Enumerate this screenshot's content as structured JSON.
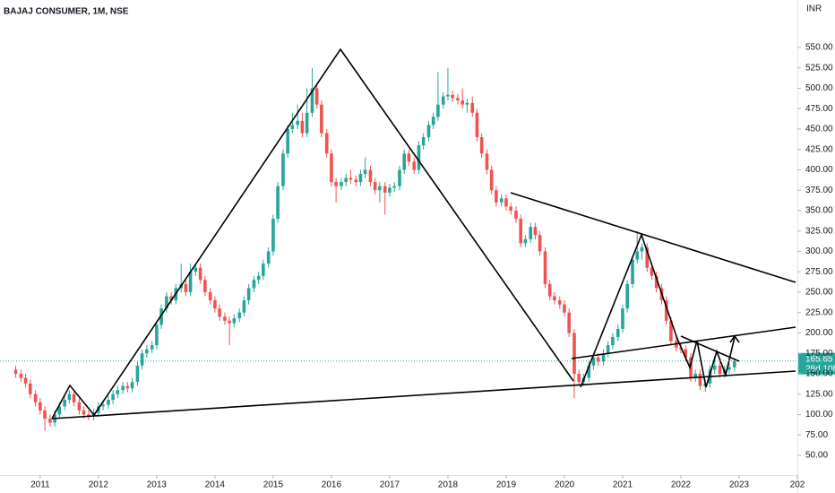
{
  "chart_data": {
    "type": "candlestick",
    "title": "BAJAJ CONSUMER, 1M, NSE",
    "currency": "INR",
    "countdown": "28d 10h",
    "up_color": "#26a69a",
    "down_color": "#ef5350",
    "xlim": [
      2010.31,
      2024.0
    ],
    "xticks": [
      2011,
      2012,
      2013,
      2014,
      2015,
      2016,
      2017,
      2018,
      2019,
      2020,
      2021,
      2022,
      2023,
      {
        "value": 2024,
        "label": "202"
      }
    ],
    "ylim": [
      25.8,
      608.2
    ],
    "yticks": [
      {
        "value": 50,
        "label": "50.00"
      },
      {
        "value": 75,
        "label": "75.00"
      },
      {
        "value": 100,
        "label": "100.00"
      },
      {
        "value": 125,
        "label": "125.00"
      },
      {
        "value": 150,
        "label": "150.00"
      },
      {
        "value": 175,
        "label": "175.00"
      },
      {
        "value": 200,
        "label": "200.00"
      },
      {
        "value": 225,
        "label": "225.00"
      },
      {
        "value": 250,
        "label": "250.00"
      },
      {
        "value": 275,
        "label": "275.00"
      },
      {
        "value": 300,
        "label": "300.00"
      },
      {
        "value": 325,
        "label": "325.00"
      },
      {
        "value": 350,
        "label": "350.00"
      },
      {
        "value": 375,
        "label": "375.00"
      },
      {
        "value": 400,
        "label": "400.00"
      },
      {
        "value": 425,
        "label": "425.00"
      },
      {
        "value": 450,
        "label": "450.00"
      },
      {
        "value": 475,
        "label": "475.00"
      },
      {
        "value": 500,
        "label": "500.00"
      },
      {
        "value": 525,
        "label": "525.00"
      },
      {
        "value": 550,
        "label": "550.00"
      }
    ],
    "x": [
      2010.58,
      2010.67,
      2010.75,
      2010.83,
      2010.92,
      2011,
      2011.08,
      2011.17,
      2011.25,
      2011.33,
      2011.42,
      2011.5,
      2011.58,
      2011.67,
      2011.75,
      2011.83,
      2011.92,
      2012,
      2012.08,
      2012.17,
      2012.25,
      2012.33,
      2012.42,
      2012.5,
      2012.58,
      2012.67,
      2012.75,
      2012.83,
      2012.92,
      2013,
      2013.08,
      2013.17,
      2013.25,
      2013.33,
      2013.42,
      2013.5,
      2013.58,
      2013.67,
      2013.75,
      2013.83,
      2013.92,
      2014,
      2014.08,
      2014.17,
      2014.25,
      2014.33,
      2014.42,
      2014.5,
      2014.58,
      2014.67,
      2014.75,
      2014.83,
      2014.92,
      2015,
      2015.08,
      2015.17,
      2015.25,
      2015.33,
      2015.42,
      2015.5,
      2015.58,
      2015.67,
      2015.75,
      2015.83,
      2015.92,
      2016,
      2016.08,
      2016.17,
      2016.25,
      2016.33,
      2016.42,
      2016.5,
      2016.58,
      2016.67,
      2016.75,
      2016.83,
      2016.92,
      2017,
      2017.08,
      2017.17,
      2017.25,
      2017.33,
      2017.42,
      2017.5,
      2017.58,
      2017.67,
      2017.75,
      2017.83,
      2017.92,
      2018,
      2018.08,
      2018.17,
      2018.25,
      2018.33,
      2018.42,
      2018.5,
      2018.58,
      2018.67,
      2018.75,
      2018.83,
      2018.92,
      2019,
      2019.08,
      2019.17,
      2019.25,
      2019.33,
      2019.42,
      2019.5,
      2019.58,
      2019.67,
      2019.75,
      2019.83,
      2019.92,
      2020,
      2020.08,
      2020.17,
      2020.25,
      2020.33,
      2020.42,
      2020.5,
      2020.58,
      2020.67,
      2020.75,
      2020.83,
      2020.92,
      2021,
      2021.08,
      2021.17,
      2021.25,
      2021.33,
      2021.42,
      2021.5,
      2021.58,
      2021.67,
      2021.75,
      2021.83,
      2021.92,
      2022,
      2022.08,
      2022.17,
      2022.25,
      2022.33,
      2022.42,
      2022.5,
      2022.58,
      2022.67,
      2022.75,
      2022.83,
      2022.92
    ],
    "open": [
      155,
      150,
      145,
      138,
      125,
      115,
      105,
      95,
      90,
      100,
      110,
      118,
      125,
      115,
      105,
      100,
      98,
      102,
      110,
      112,
      118,
      125,
      130,
      135,
      132,
      140,
      160,
      175,
      180,
      185,
      210,
      230,
      245,
      240,
      255,
      260,
      250,
      275,
      280,
      265,
      250,
      240,
      230,
      220,
      215,
      212,
      218,
      225,
      240,
      255,
      265,
      270,
      285,
      300,
      340,
      380,
      420,
      450,
      455,
      460,
      445,
      470,
      500,
      480,
      445,
      420,
      385,
      380,
      385,
      390,
      388,
      385,
      395,
      400,
      385,
      375,
      380,
      372,
      378,
      380,
      400,
      420,
      410,
      400,
      430,
      440,
      455,
      465,
      480,
      490,
      492,
      488,
      485,
      480,
      482,
      470,
      440,
      420,
      400,
      375,
      360,
      365,
      355,
      350,
      340,
      310,
      315,
      330,
      320,
      300,
      260,
      245,
      240,
      235,
      225,
      200,
      150,
      140,
      145,
      160,
      170,
      165,
      175,
      185,
      195,
      205,
      230,
      260,
      290,
      300,
      305,
      280,
      270,
      255,
      240,
      215,
      190,
      182,
      180,
      170,
      145,
      150,
      135,
      138,
      155,
      160,
      150,
      155,
      158
    ],
    "high": [
      160,
      155,
      150,
      143,
      130,
      120,
      110,
      100,
      105,
      115,
      123,
      130,
      130,
      120,
      110,
      105,
      107,
      115,
      117,
      123,
      130,
      135,
      140,
      140,
      145,
      165,
      180,
      185,
      190,
      215,
      235,
      250,
      250,
      260,
      285,
      265,
      285,
      285,
      285,
      270,
      255,
      245,
      235,
      225,
      220,
      223,
      230,
      245,
      260,
      270,
      275,
      290,
      305,
      345,
      385,
      425,
      455,
      470,
      480,
      470,
      500,
      525,
      505,
      485,
      450,
      425,
      390,
      390,
      395,
      400,
      393,
      400,
      415,
      405,
      390,
      385,
      385,
      383,
      385,
      405,
      425,
      425,
      415,
      435,
      445,
      460,
      470,
      520,
      495,
      525,
      497,
      493,
      500,
      487,
      490,
      475,
      445,
      425,
      405,
      380,
      370,
      370,
      360,
      355,
      345,
      320,
      335,
      335,
      325,
      305,
      265,
      250,
      245,
      240,
      230,
      205,
      155,
      150,
      165,
      175,
      175,
      180,
      190,
      200,
      210,
      235,
      265,
      295,
      325,
      310,
      310,
      285,
      275,
      260,
      245,
      220,
      195,
      187,
      185,
      175,
      155,
      155,
      143,
      160,
      170,
      165,
      160,
      163,
      168
    ],
    "low": [
      145,
      140,
      133,
      120,
      110,
      100,
      80,
      85,
      85,
      95,
      105,
      113,
      110,
      100,
      95,
      93,
      93,
      97,
      105,
      107,
      113,
      120,
      125,
      127,
      127,
      135,
      155,
      170,
      175,
      180,
      205,
      225,
      235,
      235,
      250,
      245,
      245,
      270,
      260,
      245,
      235,
      225,
      215,
      210,
      185,
      207,
      213,
      220,
      235,
      250,
      260,
      265,
      280,
      295,
      335,
      375,
      415,
      445,
      450,
      440,
      440,
      465,
      475,
      440,
      415,
      380,
      360,
      375,
      380,
      383,
      380,
      380,
      390,
      380,
      370,
      360,
      345,
      367,
      373,
      375,
      395,
      405,
      395,
      395,
      425,
      435,
      450,
      460,
      475,
      485,
      483,
      480,
      475,
      470,
      465,
      435,
      415,
      395,
      370,
      355,
      355,
      350,
      345,
      335,
      305,
      305,
      310,
      315,
      295,
      255,
      240,
      235,
      230,
      220,
      195,
      120,
      135,
      135,
      140,
      155,
      160,
      160,
      170,
      180,
      190,
      200,
      225,
      255,
      285,
      290,
      275,
      265,
      250,
      235,
      210,
      185,
      177,
      175,
      165,
      140,
      140,
      130,
      128,
      133,
      150,
      145,
      145,
      150,
      153
    ],
    "close": [
      150,
      145,
      138,
      125,
      115,
      105,
      95,
      90,
      100,
      110,
      118,
      125,
      115,
      105,
      100,
      98,
      102,
      110,
      112,
      118,
      125,
      130,
      135,
      132,
      140,
      160,
      175,
      180,
      185,
      210,
      230,
      245,
      240,
      255,
      260,
      250,
      275,
      280,
      265,
      250,
      240,
      230,
      220,
      215,
      212,
      218,
      225,
      240,
      255,
      265,
      270,
      285,
      300,
      340,
      380,
      420,
      450,
      455,
      460,
      445,
      470,
      500,
      480,
      445,
      420,
      385,
      380,
      385,
      390,
      388,
      385,
      395,
      400,
      385,
      375,
      380,
      372,
      378,
      380,
      400,
      420,
      410,
      400,
      430,
      440,
      455,
      465,
      480,
      490,
      492,
      488,
      485,
      480,
      482,
      470,
      440,
      420,
      400,
      375,
      360,
      365,
      355,
      350,
      340,
      310,
      315,
      330,
      320,
      300,
      260,
      245,
      240,
      235,
      225,
      200,
      150,
      140,
      145,
      160,
      170,
      165,
      175,
      185,
      195,
      205,
      230,
      260,
      290,
      300,
      305,
      280,
      270,
      255,
      240,
      215,
      190,
      182,
      180,
      170,
      145,
      150,
      135,
      138,
      155,
      160,
      150,
      155,
      158,
      165.65
    ]
  }
}
